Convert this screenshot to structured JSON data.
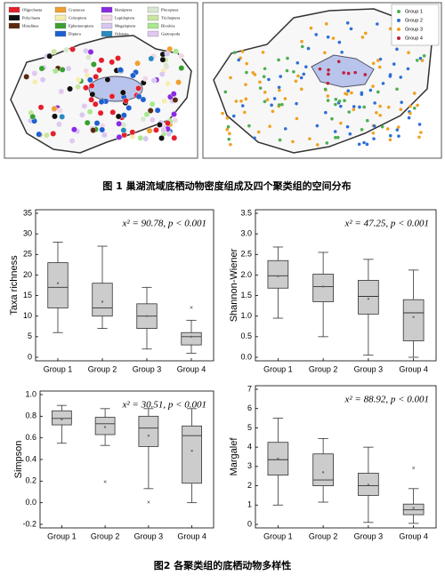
{
  "figure1": {
    "caption": "图 1 巢湖流域底栖动物密度组成及四个聚类组的空间分布",
    "taxa_legend": [
      {
        "name": "Oligochaeta",
        "color": "#e3202c"
      },
      {
        "name": "Crustacea",
        "color": "#f0a030"
      },
      {
        "name": "Hemiptera",
        "color": "#8a2be2"
      },
      {
        "name": "Plecoptera",
        "color": "#d8e8d0"
      },
      {
        "name": "Polychaeta",
        "color": "#111111"
      },
      {
        "name": "Coleoptera",
        "color": "#f6eeb0"
      },
      {
        "name": "Lepidoptera",
        "color": "#f2d6e6"
      },
      {
        "name": "Trichoptera",
        "color": "#c8e6a0"
      },
      {
        "name": "Hirudinea",
        "color": "#5a2a10"
      },
      {
        "name": "Ephemeroptera",
        "color": "#3aa030"
      },
      {
        "name": "Megaloptera",
        "color": "#d8c8f0"
      },
      {
        "name": "Bivalvia",
        "color": "#a8e890"
      },
      {
        "name": "Diptera",
        "color": "#1f5fd0"
      },
      {
        "name": "Odonata",
        "color": "#2a8ac0"
      },
      {
        "name": "Gastropoda",
        "color": "#e0c8f0"
      }
    ],
    "group_legend": [
      {
        "name": "Group 1",
        "color": "#4caf50"
      },
      {
        "name": "Group 2",
        "color": "#2f6fd6"
      },
      {
        "name": "Group 3",
        "color": "#f0a020"
      },
      {
        "name": "Group 4",
        "color": "#c0203a"
      }
    ]
  },
  "figure2": {
    "caption": "图2 各聚类组的底栖动物多样性"
  },
  "chart_data": [
    {
      "type": "box",
      "y_label": "Taxa richness",
      "annotation": "x² = 90.78, p < 0.001",
      "categories": [
        "Group 1",
        "Group 2",
        "Group 3",
        "Group 4"
      ],
      "color": "#cccccc",
      "whisker_low": [
        6,
        7,
        2,
        1
      ],
      "q1": [
        12,
        10,
        7,
        3
      ],
      "median": [
        17,
        12,
        10,
        5
      ],
      "q3": [
        23,
        18,
        13,
        6
      ],
      "whisker_high": [
        28,
        27,
        17,
        9
      ],
      "mean": [
        18,
        13.5,
        10,
        5
      ],
      "outliers": [
        [],
        [],
        [],
        [
          12
        ]
      ],
      "ylim": [
        0,
        35
      ],
      "yticks": [
        0,
        5,
        10,
        15,
        20,
        25,
        30,
        35
      ]
    },
    {
      "type": "box",
      "y_label": "Shannon-Wiener",
      "annotation": "x² = 47.25, p < 0.001",
      "categories": [
        "Group 1",
        "Group 2",
        "Group 3",
        "Group 4"
      ],
      "color": "#cccccc",
      "whisker_low": [
        0.95,
        0.5,
        0.05,
        0.0
      ],
      "q1": [
        1.68,
        1.35,
        1.05,
        0.4
      ],
      "median": [
        1.98,
        1.72,
        1.48,
        1.08
      ],
      "q3": [
        2.35,
        2.02,
        1.87,
        1.4
      ],
      "whisker_high": [
        2.68,
        2.55,
        2.38,
        2.12
      ],
      "mean": [
        1.97,
        1.72,
        1.42,
        0.98
      ],
      "outliers": [
        [],
        [],
        [],
        []
      ],
      "ylim": [
        0,
        3.5
      ],
      "yticks": [
        {
          "value": 0,
          "label": "0.0"
        },
        0.5,
        {
          "value": 1,
          "label": "1.0"
        },
        1.5,
        {
          "value": 2,
          "label": "2.0"
        },
        2.5,
        {
          "value": 3,
          "label": "3.0"
        },
        3.5
      ]
    },
    {
      "type": "box",
      "y_label": "Simpson",
      "annotation": "x² = 30.51, p < 0.001",
      "categories": [
        "Group 1",
        "Group 2",
        "Group 3",
        "Group 4"
      ],
      "color": "#cccccc",
      "whisker_low": [
        0.55,
        0.53,
        0.13,
        0.0
      ],
      "q1": [
        0.72,
        0.63,
        0.52,
        0.18
      ],
      "median": [
        0.78,
        0.73,
        0.69,
        0.62
      ],
      "q3": [
        0.85,
        0.79,
        0.8,
        0.71
      ],
      "whisker_high": [
        0.9,
        0.87,
        0.87,
        0.87
      ],
      "mean": [
        0.77,
        0.7,
        0.62,
        0.48
      ],
      "outliers": [
        [],
        [
          0.19
        ],
        [
          0.0
        ],
        []
      ],
      "ylim": [
        -0.2,
        1
      ],
      "yticks": [
        -0.2,
        {
          "value": 0,
          "label": "0.0"
        },
        0.2,
        0.4,
        0.6,
        0.8,
        {
          "value": 1,
          "label": "1.0"
        }
      ]
    },
    {
      "type": "box",
      "y_label": "Margalef",
      "annotation": "x² = 88.92, p < 0.001",
      "categories": [
        "Group 1",
        "Group 2",
        "Group 3",
        "Group 4"
      ],
      "color": "#cccccc",
      "whisker_low": [
        1.0,
        1.15,
        0.1,
        0.05
      ],
      "q1": [
        2.55,
        2.0,
        1.5,
        0.5
      ],
      "median": [
        3.35,
        2.3,
        2.0,
        0.75
      ],
      "q3": [
        4.25,
        3.65,
        2.65,
        1.05
      ],
      "whisker_high": [
        5.5,
        4.45,
        4.0,
        1.85
      ],
      "mean": [
        3.4,
        2.7,
        2.05,
        0.85
      ],
      "outliers": [
        [],
        [],
        [],
        [
          2.9
        ]
      ],
      "ylim": [
        0,
        7
      ],
      "yticks": [
        0,
        1,
        2,
        3,
        4,
        5,
        6,
        7
      ]
    }
  ]
}
